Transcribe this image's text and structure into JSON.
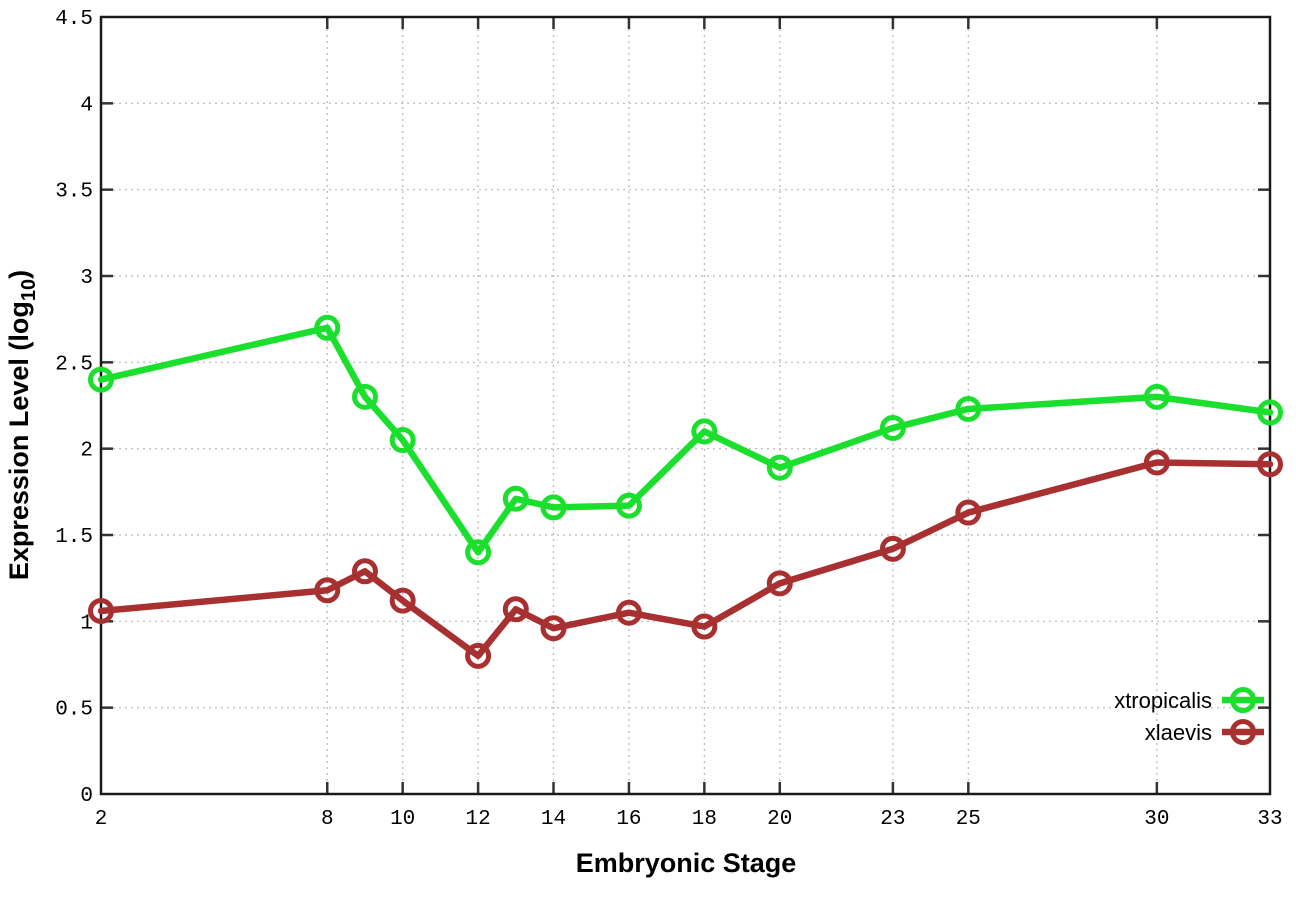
{
  "figure": {
    "background": "#ffffff",
    "border_color": "#1a1a1a",
    "grid_color": "#b8b8b8",
    "tick_color": "#333333",
    "xlabel": "Embryonic Stage",
    "ylabel": {
      "pre": "Expression Level (log",
      "sub": "10",
      "post": ")"
    }
  },
  "chart_data": {
    "type": "line",
    "title": "",
    "xlabel": "Embryonic Stage",
    "ylabel": "Expression Level (log10)",
    "x": [
      2,
      8,
      9,
      10,
      12,
      13,
      14,
      16,
      18,
      20,
      23,
      25,
      30,
      33
    ],
    "series": [
      {
        "name": "xtropicalis",
        "color": "#1bdf2d",
        "marker": "open-circle",
        "values": [
          2.4,
          2.7,
          2.3,
          2.05,
          1.4,
          1.71,
          1.66,
          1.67,
          2.1,
          1.89,
          2.12,
          2.23,
          2.3,
          2.21
        ]
      },
      {
        "name": "xlaevis",
        "color": "#a83030",
        "marker": "open-circle",
        "values": [
          1.06,
          1.18,
          1.29,
          1.12,
          0.8,
          1.07,
          0.96,
          1.05,
          0.97,
          1.22,
          1.42,
          1.63,
          1.92,
          1.91
        ]
      }
    ],
    "xtick_labels": [
      "2",
      "8",
      "10",
      "12",
      "14",
      "16",
      "18",
      "20",
      "23",
      "25",
      "30",
      "33"
    ],
    "ytick_labels": [
      "0",
      "0.5",
      "1",
      "1.5",
      "2",
      "2.5",
      "3",
      "3.5",
      "4",
      "4.5"
    ],
    "xlim": [
      2,
      33
    ],
    "ylim": [
      0,
      4.5
    ],
    "grid": true,
    "legend_position": "inside-right-bottom"
  }
}
